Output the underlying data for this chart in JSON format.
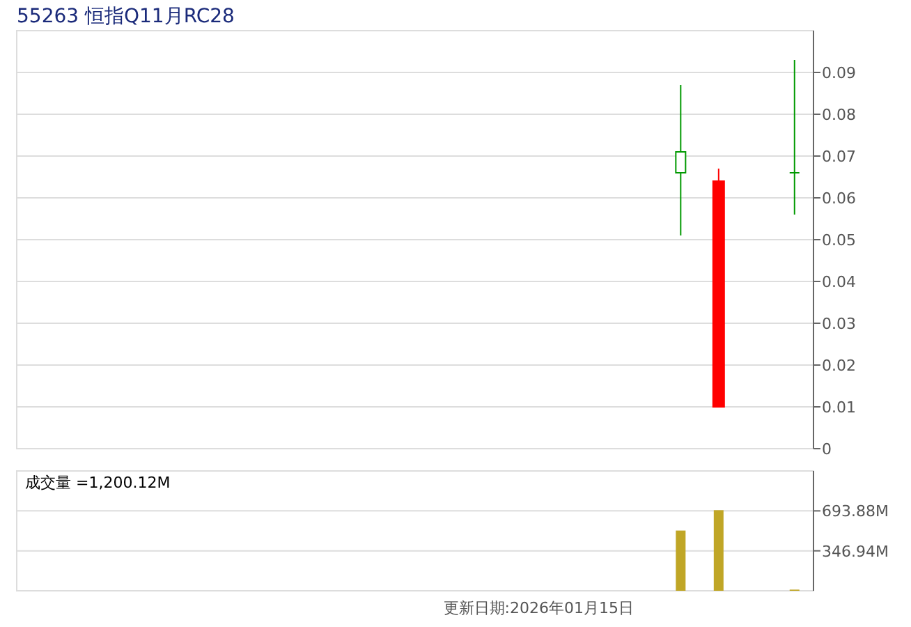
{
  "chart_data": [
    {
      "type": "candlestick",
      "title": "55263 恒指Q11月RC28",
      "categories": [
        null,
        null,
        null,
        null,
        null,
        null,
        null,
        null,
        null,
        null,
        null,
        null,
        null,
        null,
        null,
        null,
        null,
        null,
        null,
        null,
        null
      ],
      "ohlc": [
        null,
        null,
        null,
        null,
        null,
        null,
        null,
        null,
        null,
        null,
        null,
        null,
        null,
        null,
        null,
        null,
        null,
        [
          0.066,
          0.087,
          0.051,
          0.071
        ],
        [
          0.064,
          0.067,
          0.01,
          0.01
        ],
        null,
        [
          0.066,
          0.093,
          0.056,
          0.066
        ]
      ],
      "colors": [
        null,
        null,
        null,
        null,
        null,
        null,
        null,
        null,
        null,
        null,
        null,
        null,
        null,
        null,
        null,
        null,
        null,
        "#009900",
        "#ff0000",
        null,
        "#009900"
      ],
      "ylim": [
        0,
        0.1
      ],
      "yticks": [
        0,
        0.01,
        0.02,
        0.03,
        0.04,
        0.05,
        0.06,
        0.07,
        0.08,
        0.09
      ],
      "grid": "y"
    },
    {
      "type": "bar",
      "categories": [
        null,
        null,
        null,
        null,
        null,
        null,
        null,
        null,
        null,
        null,
        null,
        null,
        null,
        null,
        null,
        null,
        null,
        null,
        null,
        null,
        null
      ],
      "values": [
        null,
        null,
        null,
        null,
        null,
        null,
        null,
        null,
        null,
        null,
        null,
        null,
        null,
        null,
        null,
        null,
        null,
        523,
        700,
        null,
        10
      ],
      "color": "#c0a626",
      "ylim": [
        0,
        1040.82
      ],
      "yticks": [
        {
          "value": 346.94,
          "label": "346.94M"
        },
        {
          "value": 693.88,
          "label": "693.88M"
        }
      ],
      "grid": "y",
      "annotations": [
        "成交量 =1,200.12M",
        "更新日期:2026年01月15日"
      ]
    }
  ]
}
